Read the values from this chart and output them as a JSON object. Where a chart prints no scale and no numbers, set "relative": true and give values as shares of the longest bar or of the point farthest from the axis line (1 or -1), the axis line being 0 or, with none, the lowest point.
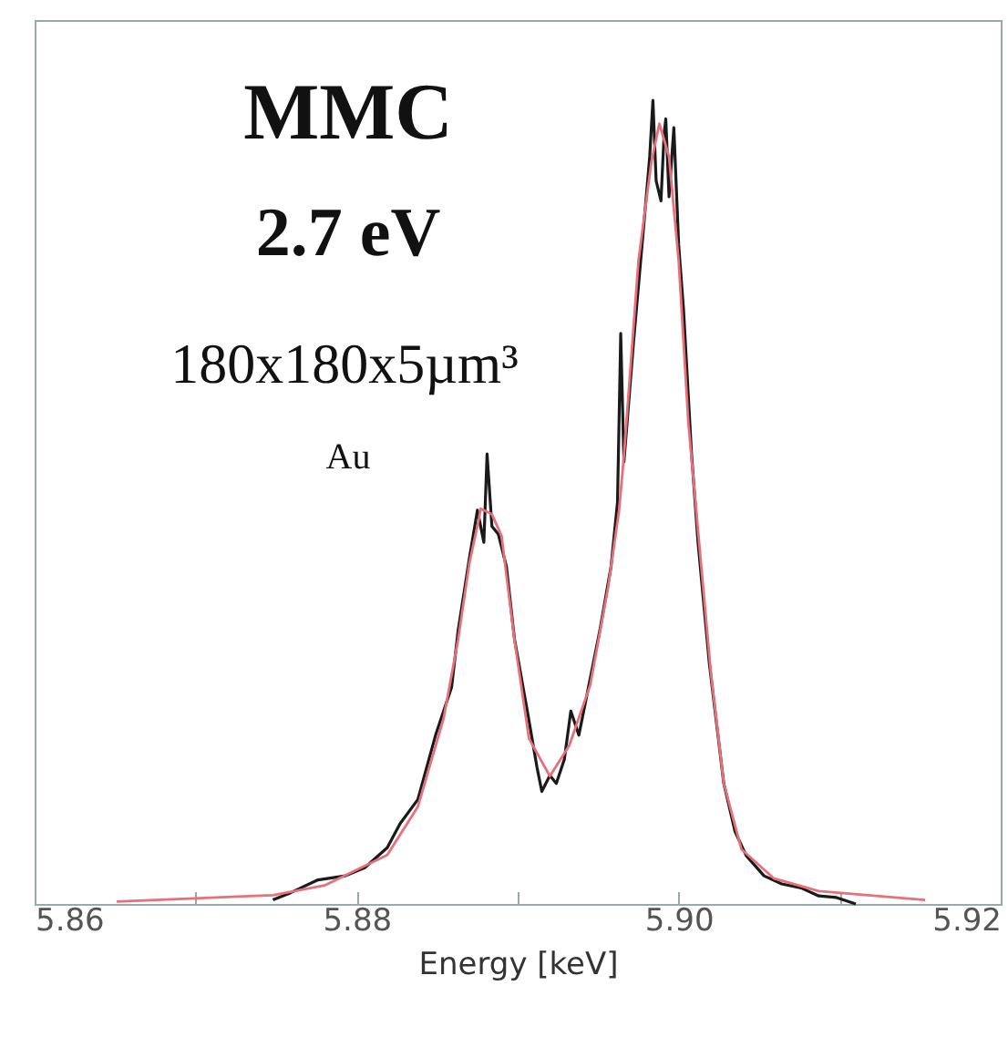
{
  "chart_data": {
    "type": "line",
    "relative": true,
    "xlabel": "Energy [keV]",
    "xlim": [
      5.86,
      5.92
    ],
    "xticks": [
      5.86,
      {
        "value": 5.87,
        "label": null
      },
      5.88,
      {
        "value": 5.89,
        "label": null
      },
      {
        "value": 5.9,
        "label": "5.90"
      },
      {
        "value": 5.91,
        "label": null
      },
      5.92
    ],
    "annotations": [
      "MMC",
      "2.7 eV",
      "180x180x5µm³",
      "Au"
    ],
    "grid": false,
    "marker": "none",
    "line_style": "solid",
    "series": [
      {
        "color": "#1a1a1a",
        "x": [
          5.8748,
          5.8759,
          5.8776,
          5.8793,
          5.8805,
          5.8819,
          5.8827,
          5.8838,
          5.8849,
          5.8859,
          5.8863,
          5.887,
          5.8875,
          5.8879,
          5.8881,
          5.8884,
          5.8888,
          5.8893,
          5.8898,
          5.8906,
          5.8912,
          5.8915,
          5.892,
          5.8924,
          5.8929,
          5.8933,
          5.8938,
          5.8945,
          5.8951,
          5.8958,
          5.8962,
          5.8964,
          5.8966,
          5.8972,
          5.8979,
          5.8982,
          5.8984,
          5.8986,
          5.8989,
          5.8991,
          5.8992,
          5.8994,
          5.8997,
          5.9,
          5.9003,
          5.9008,
          5.9012,
          5.9019,
          5.9028,
          5.9035,
          5.9042,
          5.9053,
          5.9064,
          5.9076,
          5.9087,
          5.9098,
          5.911
        ],
        "values": [
          0.005,
          0.014,
          0.03,
          0.035,
          0.045,
          0.07,
          0.1,
          0.13,
          0.21,
          0.27,
          0.34,
          0.43,
          0.49,
          0.45,
          0.56,
          0.47,
          0.46,
          0.42,
          0.33,
          0.24,
          0.17,
          0.14,
          0.16,
          0.15,
          0.18,
          0.24,
          0.21,
          0.28,
          0.34,
          0.42,
          0.5,
          0.71,
          0.55,
          0.7,
          0.86,
          0.93,
          1.0,
          0.9,
          0.875,
          0.96,
          0.977,
          0.88,
          0.966,
          0.82,
          0.74,
          0.56,
          0.45,
          0.3,
          0.15,
          0.09,
          0.06,
          0.035,
          0.025,
          0.02,
          0.01,
          0.008,
          0.0
        ]
      },
      {
        "color": "#e8707a",
        "x": [
          5.8651,
          5.8748,
          5.878,
          5.8819,
          5.8838,
          5.8854,
          5.8863,
          5.887,
          5.8876,
          5.8877,
          5.8884,
          5.889,
          5.8898,
          5.8907,
          5.892,
          5.8932,
          5.8945,
          5.8956,
          5.8963,
          5.8966,
          5.8975,
          5.8983,
          5.8988,
          5.8994,
          5.9,
          5.9006,
          5.9012,
          5.902,
          5.9028,
          5.9039,
          5.9059,
          5.9087,
          5.9153
        ],
        "values": [
          0.003,
          0.011,
          0.023,
          0.061,
          0.121,
          0.231,
          0.329,
          0.424,
          0.48,
          0.492,
          0.485,
          0.458,
          0.329,
          0.206,
          0.159,
          0.197,
          0.272,
          0.392,
          0.49,
          0.558,
          0.8,
          0.923,
          0.971,
          0.93,
          0.8,
          0.599,
          0.465,
          0.288,
          0.15,
          0.068,
          0.032,
          0.016,
          0.005
        ]
      }
    ]
  }
}
